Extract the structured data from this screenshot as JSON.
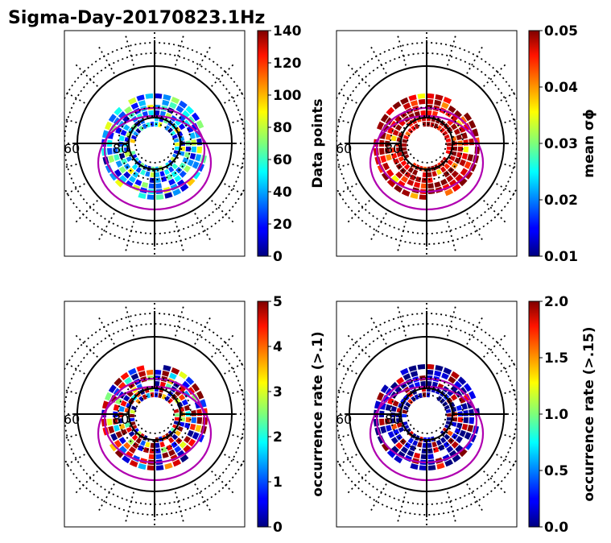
{
  "figure": {
    "title": "Sigma-Day-20170823.1Hz"
  },
  "chart_data": [
    {
      "type": "heatmap",
      "projection": "polar",
      "colormap": "jet",
      "colorbar": {
        "label": "Data points",
        "ticks": [
          "0",
          "20",
          "40",
          "60",
          "80",
          "100",
          "120",
          "140"
        ],
        "range": [
          0,
          140
        ]
      },
      "lat_labels": [
        "60",
        "80"
      ],
      "pattern": [
        0.45,
        0.15,
        0.3,
        0.6,
        0.2,
        0.35,
        0.1,
        0.5,
        0.25,
        0.4,
        0.15,
        0.3,
        0.55,
        0.2,
        0.35,
        0.1
      ]
    },
    {
      "type": "heatmap",
      "projection": "polar",
      "colormap": "jet",
      "colorbar": {
        "label": "mean σϕ",
        "ticks": [
          "0.01",
          "0.02",
          "0.03",
          "0.04",
          "0.05"
        ],
        "range": [
          0.01,
          0.05
        ]
      },
      "lat_labels": [
        "60",
        "80"
      ],
      "pattern": [
        0.98,
        0.95,
        0.9,
        0.97,
        0.99,
        0.85,
        0.96,
        0.92,
        0.98,
        0.7,
        0.95,
        0.99,
        0.88,
        0.97,
        0.93,
        0.99
      ]
    },
    {
      "type": "heatmap",
      "projection": "polar",
      "colormap": "jet",
      "colorbar": {
        "label": "occurrence rate (>.1)",
        "ticks": [
          "0",
          "1",
          "2",
          "3",
          "4",
          "5"
        ],
        "range": [
          0,
          5
        ]
      },
      "lat_labels": [
        "60",
        "80"
      ],
      "pattern": [
        0.98,
        0.1,
        0.95,
        0.5,
        0.05,
        0.99,
        0.8,
        0.1,
        0.97,
        0.3,
        0.9,
        0.05,
        0.99,
        0.6,
        0.15,
        0.95
      ]
    },
    {
      "type": "heatmap",
      "projection": "polar",
      "colormap": "jet",
      "colorbar": {
        "label": "occurrence rate (>.15)",
        "ticks": [
          "0.0",
          "0.5",
          "1.0",
          "1.5",
          "2.0"
        ],
        "range": [
          0,
          2
        ]
      },
      "lat_labels": [
        "60",
        "80"
      ],
      "pattern": [
        0.05,
        0.02,
        0.1,
        0.98,
        0.03,
        0.05,
        0.9,
        0.02,
        0.08,
        0.05,
        0.99,
        0.03,
        0.04,
        0.95,
        0.02,
        0.06
      ]
    }
  ],
  "colors": {
    "boundary": "#b000b0",
    "circles": "#000000"
  }
}
